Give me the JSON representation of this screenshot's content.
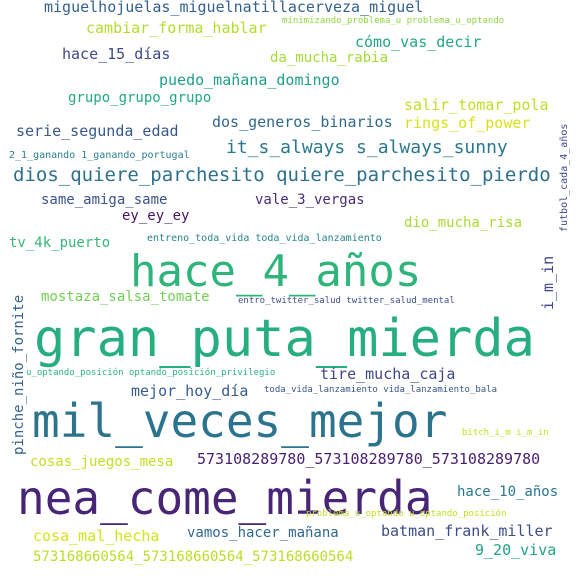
{
  "colors": {
    "background": "#ffffff",
    "palette": [
      "#440154",
      "#472d7b",
      "#3b528b",
      "#2c728e",
      "#21918c",
      "#28ae80",
      "#5ec962",
      "#addc30",
      "#fde725"
    ]
  },
  "words": [
    {
      "text": "gran_puta_mierda",
      "color": "#26ad81"
    },
    {
      "text": "hace_4_años",
      "color": "#2fb47c"
    },
    {
      "text": "mil_veces_mejor",
      "color": "#2c738e"
    },
    {
      "text": "nea_come_mierda",
      "color": "#482576"
    },
    {
      "text": "dios_quiere_parchesito quiere_parchesito_pierdo",
      "color": "#2d708e"
    },
    {
      "text": "it_s_always s_always_sunny",
      "color": "#2a788e"
    },
    {
      "text": "miguelhojuelas_miguelnatillacerveza_miguel",
      "color": "#34618d"
    },
    {
      "text": "cambiar_forma_hablar",
      "color": "#b2dd2d"
    },
    {
      "text": "minimizando_problema_u problema_u_optando",
      "color": "#8fd744"
    },
    {
      "text": "cómo_vas_decir",
      "color": "#22a785"
    },
    {
      "text": "hace_15_días",
      "color": "#3e4a89"
    },
    {
      "text": "da_mucha_rabia",
      "color": "#a5db36"
    },
    {
      "text": "futbol_cada_4_años",
      "color": "#3e4989"
    },
    {
      "text": "puedo_mañana_domingo",
      "color": "#1f9e89"
    },
    {
      "text": "grupo_grupo_grupo",
      "color": "#22a884"
    },
    {
      "text": "salir_tomar_pola",
      "color": "#bddf26"
    },
    {
      "text": "rings_of_power",
      "color": "#d8e219"
    },
    {
      "text": "dos_generos_binarios",
      "color": "#31688e"
    },
    {
      "text": "serie_segunda_edad",
      "color": "#38588c"
    },
    {
      "text": "2_1_ganando 1_ganando_portugal",
      "color": "#27808e"
    },
    {
      "text": "same_amiga_same",
      "color": "#3b528b"
    },
    {
      "text": "vale_3_vergas",
      "color": "#472c7a"
    },
    {
      "text": "ey_ey_ey",
      "color": "#471365"
    },
    {
      "text": "dio_mucha_risa",
      "color": "#a8db34"
    },
    {
      "text": "tv_4k_puerto",
      "color": "#35b779"
    },
    {
      "text": "entreno_toda_vida toda_vida_lanzamiento",
      "color": "#25848e"
    },
    {
      "text": "i_m_in",
      "color": "#3f4788"
    },
    {
      "text": "mostaza_salsa_tomate",
      "color": "#73d056"
    },
    {
      "text": "entro_twitter_salud twitter_salud_mental",
      "color": "#3d4e8a"
    },
    {
      "text": "pinche_niño_fornite",
      "color": "#33638d"
    },
    {
      "text": "u_optando_posición optando_posición_privilegio",
      "color": "#2db27d"
    },
    {
      "text": "tire_mucha_caja",
      "color": "#404588"
    },
    {
      "text": "mejor_hoy_día",
      "color": "#375b8d"
    },
    {
      "text": "toda_vida_lanzamiento vida_lanzamiento_bala",
      "color": "#3a548c"
    },
    {
      "text": "bitch_i_m i_m_in",
      "color": "#c8e020"
    },
    {
      "text": "cosas_juegos_mesa",
      "color": "#c2df23"
    },
    {
      "text": "573108289780_573108289780_573108289780",
      "color": "#481f70"
    },
    {
      "text": "hace_10_años",
      "color": "#2a778e"
    },
    {
      "text": "cosa_mal_hecha",
      "color": "#d5e21a"
    },
    {
      "text": "problema_u_optando u_optando_posición",
      "color": "#c0df25"
    },
    {
      "text": "vamos_hacer_mañana",
      "color": "#31688e"
    },
    {
      "text": "batman_frank_miller",
      "color": "#3d4d8a"
    },
    {
      "text": "573168660564_573168660564_573168660564",
      "color": "#bade28"
    },
    {
      "text": "9_20_viva",
      "color": "#20a386"
    }
  ]
}
